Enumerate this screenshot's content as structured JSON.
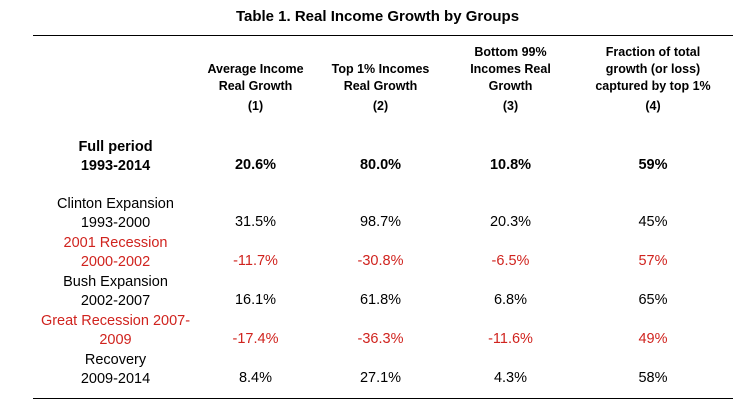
{
  "title": "Table 1. Real Income Growth by Groups",
  "columns": [
    {
      "heading": [
        "",
        "Average Income",
        "Real Growth"
      ],
      "number": "(1)"
    },
    {
      "heading": [
        "",
        "Top 1% Incomes",
        "Real Growth"
      ],
      "number": "(2)"
    },
    {
      "heading": [
        "Bottom 99%",
        "Incomes Real",
        "Growth"
      ],
      "number": "(3)"
    },
    {
      "heading": [
        "Fraction of total",
        "growth (or loss)",
        "captured by top 1%"
      ],
      "number": "(4)"
    }
  ],
  "rows": [
    {
      "label": [
        "Full period",
        "1993-2014"
      ],
      "values": [
        "20.6%",
        "80.0%",
        "10.8%",
        "59%"
      ],
      "style": "bold"
    },
    {
      "label": [
        "Clinton Expansion",
        "1993-2000"
      ],
      "values": [
        "31.5%",
        "98.7%",
        "20.3%",
        "45%"
      ],
      "style": "normal"
    },
    {
      "label": [
        "2001 Recession",
        "2000-2002"
      ],
      "values": [
        "-11.7%",
        "-30.8%",
        "-6.5%",
        "57%"
      ],
      "style": "red"
    },
    {
      "label": [
        "Bush Expansion",
        "2002-2007"
      ],
      "values": [
        "16.1%",
        "61.8%",
        "6.8%",
        "65%"
      ],
      "style": "normal"
    },
    {
      "label": [
        "Great Recession 2007-",
        "2009"
      ],
      "values": [
        "-17.4%",
        "-36.3%",
        "-11.6%",
        "49%"
      ],
      "style": "red"
    },
    {
      "label": [
        "Recovery",
        "2009-2014"
      ],
      "values": [
        "8.4%",
        "27.1%",
        "4.3%",
        "58%"
      ],
      "style": "normal"
    }
  ],
  "colors": {
    "recession_red": "#d0231e",
    "text": "#000000",
    "rule": "#000000"
  }
}
